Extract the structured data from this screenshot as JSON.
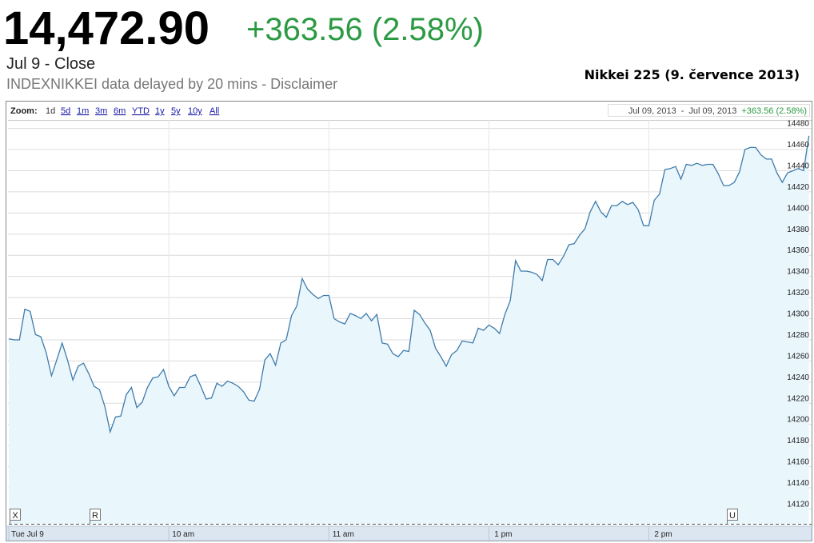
{
  "quote": {
    "price": "14,472.90",
    "change": "+363.56 (2.58%)",
    "status": "Jul 9 - Close",
    "note": "INDEXNIKKEI data delayed by 20 mins - Disclaimer"
  },
  "zoom": {
    "label": "Zoom:",
    "options": [
      "1d",
      "5d",
      "1m",
      "3m",
      "6m",
      "YTD",
      "1y",
      "5y",
      "10y",
      "All"
    ]
  },
  "range": {
    "from": "Jul 09, 2013",
    "separator": "-",
    "to": "Jul 09, 2013",
    "change": "+363.56 (2.58%)"
  },
  "event_flags": [
    "X",
    "R",
    "U"
  ],
  "chart_data": {
    "type": "area",
    "title": "Nikkei 225 (9. července 2013)",
    "color": "#3f7bab",
    "fill_color": "#e9f6fc",
    "x": [
      0,
      2,
      4,
      6,
      8,
      10,
      12,
      14,
      16,
      18,
      20,
      22,
      24,
      26,
      28,
      30,
      32,
      34,
      36,
      38,
      40,
      42,
      44,
      46,
      48,
      50,
      52,
      54,
      56,
      58,
      60,
      62,
      64,
      66,
      68,
      70,
      72,
      74,
      76,
      78,
      80,
      82,
      84,
      86,
      88,
      90,
      92,
      94,
      96,
      98,
      100,
      102,
      104,
      106,
      108,
      110,
      112,
      114,
      116,
      118,
      120,
      122,
      124,
      126,
      128,
      130,
      132,
      134,
      136,
      138,
      140,
      142,
      144,
      146,
      148,
      150,
      152,
      154,
      156,
      158,
      160,
      162,
      164,
      166,
      168,
      170,
      172,
      174,
      176,
      178,
      180,
      182,
      184,
      186,
      188,
      190,
      192,
      194,
      196,
      198,
      200,
      202,
      204,
      206,
      208,
      210,
      212,
      214,
      216,
      218,
      220,
      222,
      224,
      226,
      228,
      230,
      232,
      234,
      236,
      238,
      240,
      242,
      244,
      246,
      248,
      250,
      252,
      254,
      256,
      258,
      260,
      262,
      264,
      266,
      268,
      270,
      272,
      274,
      276,
      278,
      280,
      282,
      284,
      286,
      288,
      290,
      292,
      294,
      296,
      298,
      300
    ],
    "values": [
      14281,
      14280,
      14280,
      14309,
      14307,
      14285,
      14283,
      14268,
      14246,
      14261,
      14277,
      14261,
      14242,
      14255,
      14258,
      14248,
      14236,
      14233,
      14217,
      14193,
      14207,
      14208,
      14228,
      14235,
      14216,
      14221,
      14235,
      14244,
      14245,
      14252,
      14236,
      14227,
      14235,
      14235,
      14245,
      14247,
      14236,
      14224,
      14225,
      14239,
      14236,
      14241,
      14239,
      14236,
      14231,
      14223,
      14222,
      14233,
      14261,
      14267,
      14256,
      14277,
      14280,
      14303,
      14312,
      14338,
      14328,
      14323,
      14319,
      14322,
      14322,
      14300,
      14297,
      14295,
      14305,
      14303,
      14300,
      14305,
      14298,
      14304,
      14277,
      14276,
      14267,
      14264,
      14270,
      14269,
      14308,
      14304,
      14296,
      14289,
      14272,
      14264,
      14255,
      14266,
      14270,
      14279,
      14278,
      14277,
      14291,
      14289,
      14294,
      14291,
      14286,
      14304,
      14317,
      14355,
      14345,
      14345,
      14344,
      14342,
      14336,
      14356,
      14356,
      14351,
      14359,
      14370,
      14371,
      14379,
      14385,
      14401,
      14411,
      14401,
      14396,
      14407,
      14407,
      14411,
      14408,
      14410,
      14403,
      14388,
      14388,
      14412,
      14418,
      14441,
      14442,
      14444,
      14432,
      14446,
      14445,
      14447,
      14445,
      14446,
      14446,
      14437,
      14426,
      14426,
      14429,
      14439,
      14460,
      14462,
      14462,
      14455,
      14451,
      14451,
      14438,
      14429,
      14438,
      14440,
      14442,
      14440,
      14473
    ],
    "xlim": [
      0,
      301
    ],
    "xticks": [
      {
        "value": 0,
        "label": "Tue Jul 9"
      },
      {
        "value": 60,
        "label": "10 am"
      },
      {
        "value": 120,
        "label": "11 am"
      },
      {
        "value": 180,
        "label": "1 pm"
      },
      {
        "value": 240,
        "label": "2 pm"
      }
    ],
    "ylim": [
      14106,
      14488
    ],
    "yticks": [
      14120,
      14140,
      14160,
      14180,
      14200,
      14220,
      14240,
      14260,
      14280,
      14300,
      14320,
      14340,
      14360,
      14380,
      14400,
      14420,
      14440,
      14460,
      14480
    ],
    "grid": true
  }
}
